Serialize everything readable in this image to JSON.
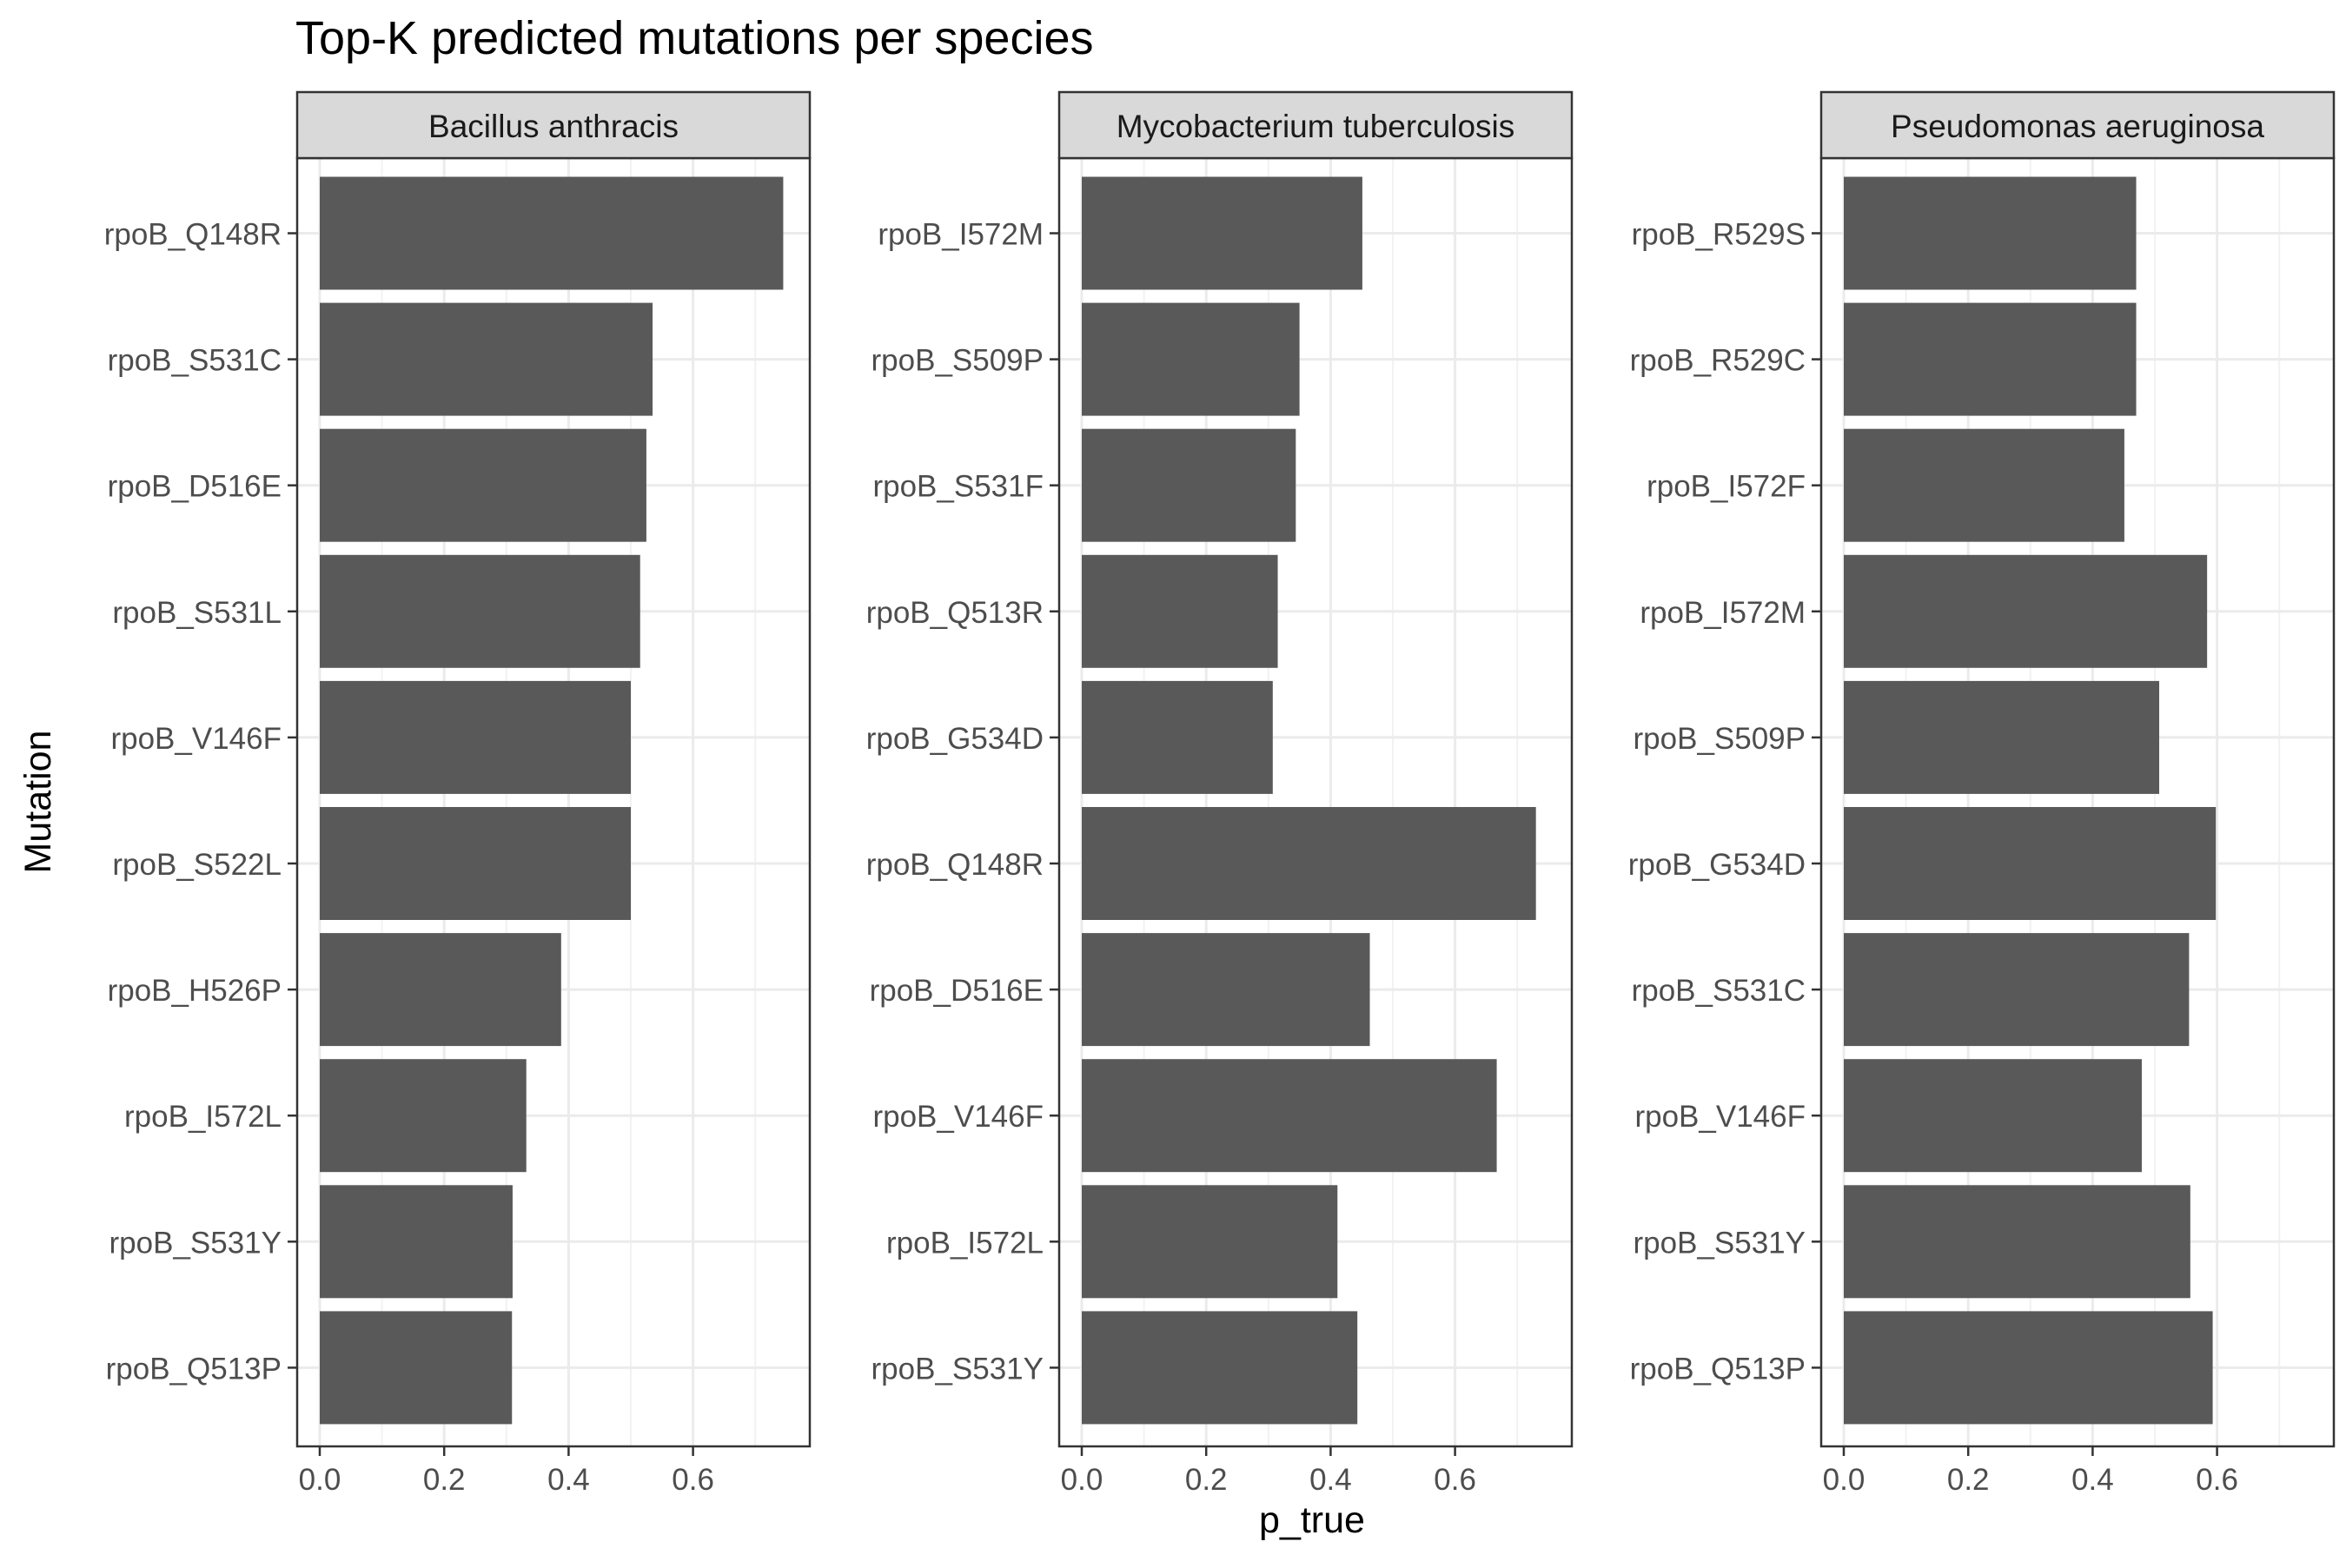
{
  "chart_data": {
    "type": "bar",
    "orientation": "horizontal",
    "title": "Top-K predicted mutations per species",
    "xlabel": "p_true",
    "ylabel": "Mutation",
    "xlim": [
      0,
      0.78
    ],
    "xticks": [
      0.0,
      0.2,
      0.4,
      0.6
    ],
    "xtick_labels": [
      "0.0",
      "0.2",
      "0.4",
      "0.6"
    ],
    "grid": true,
    "bar_color": "#595959",
    "facets": [
      {
        "name": "Bacillus anthracis",
        "categories": [
          "rpoB_Q148R",
          "rpoB_S531C",
          "rpoB_D516E",
          "rpoB_S531L",
          "rpoB_V146F",
          "rpoB_S522L",
          "rpoB_H526P",
          "rpoB_I572L",
          "rpoB_S531Y",
          "rpoB_Q513P"
        ],
        "values": [
          0.745,
          0.535,
          0.525,
          0.515,
          0.5,
          0.5,
          0.388,
          0.332,
          0.31,
          0.309
        ]
      },
      {
        "name": "Mycobacterium tuberculosis",
        "categories": [
          "rpoB_I572M",
          "rpoB_S509P",
          "rpoB_S531F",
          "rpoB_Q513R",
          "rpoB_G534D",
          "rpoB_Q148R",
          "rpoB_D516E",
          "rpoB_V146F",
          "rpoB_I572L",
          "rpoB_S531Y"
        ],
        "values": [
          0.451,
          0.35,
          0.344,
          0.315,
          0.307,
          0.73,
          0.463,
          0.667,
          0.411,
          0.443
        ]
      },
      {
        "name": "Pseudomonas aeruginosa",
        "categories": [
          "rpoB_R529S",
          "rpoB_R529C",
          "rpoB_I572F",
          "rpoB_I572M",
          "rpoB_S509P",
          "rpoB_G534D",
          "rpoB_S531C",
          "rpoB_V146F",
          "rpoB_S531Y",
          "rpoB_Q513P"
        ],
        "values": [
          0.47,
          0.47,
          0.451,
          0.584,
          0.507,
          0.598,
          0.555,
          0.479,
          0.557,
          0.593
        ]
      }
    ]
  }
}
